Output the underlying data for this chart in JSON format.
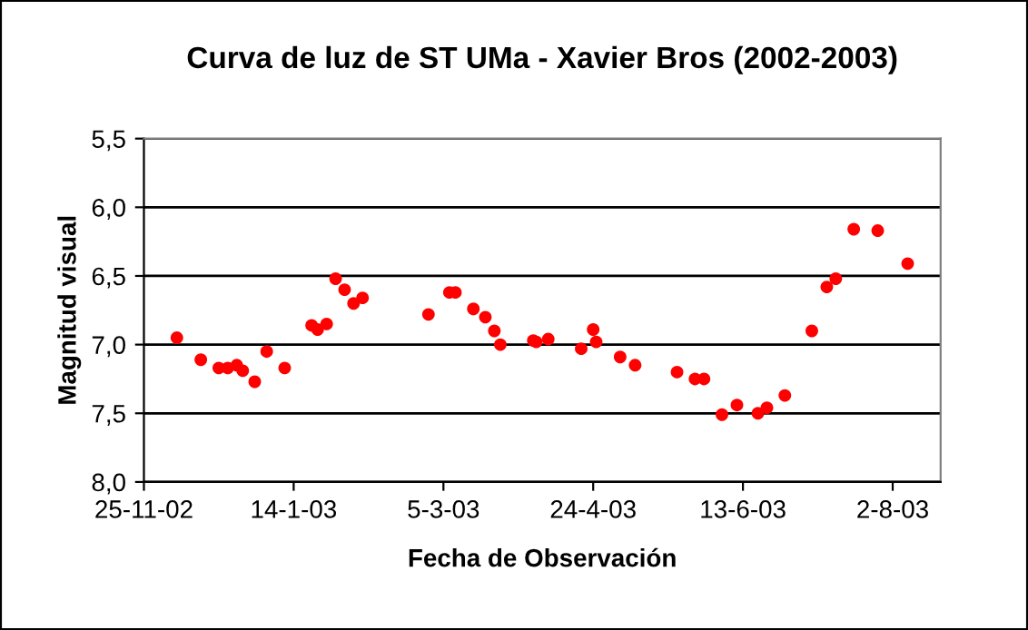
{
  "chart_data": {
    "type": "scatter",
    "title": "Curva de luz de ST UMa - Xavier Bros (2002-2003)",
    "xlabel": "Fecha de Observación",
    "ylabel": "Magnitud visual",
    "x": [
      "2002-12-06",
      "2002-12-14",
      "2002-12-20",
      "2002-12-23",
      "2002-12-26",
      "2002-12-28",
      "2003-01-01",
      "2003-01-05",
      "2003-01-11",
      "2003-01-20",
      "2003-01-22",
      "2003-01-25",
      "2003-01-28",
      "2003-01-31",
      "2003-02-03",
      "2003-02-06",
      "2003-02-28",
      "2003-03-07",
      "2003-03-09",
      "2003-03-15",
      "2003-03-19",
      "2003-03-22",
      "2003-03-24",
      "2003-04-04",
      "2003-04-05",
      "2003-04-09",
      "2003-04-20",
      "2003-04-24",
      "2003-04-25",
      "2003-05-03",
      "2003-05-08",
      "2003-05-22",
      "2003-05-28",
      "2003-05-31",
      "2003-06-06",
      "2003-06-11",
      "2003-06-18",
      "2003-06-21",
      "2003-06-27",
      "2003-07-06",
      "2003-07-11",
      "2003-07-14",
      "2003-07-20",
      "2003-07-28",
      "2003-08-07"
    ],
    "series": [
      {
        "color": "#ff0000",
        "values": [
          6.95,
          7.11,
          7.17,
          7.17,
          7.15,
          7.19,
          7.27,
          7.05,
          7.17,
          6.86,
          6.89,
          6.85,
          6.52,
          6.6,
          6.7,
          6.66,
          6.78,
          6.62,
          6.62,
          6.74,
          6.8,
          6.9,
          7.0,
          6.97,
          6.98,
          6.96,
          7.03,
          6.89,
          6.98,
          7.09,
          7.15,
          7.2,
          7.25,
          7.25,
          7.51,
          7.44,
          7.5,
          7.46,
          7.37,
          6.9,
          6.58,
          6.52,
          6.16,
          6.17,
          6.41
        ]
      }
    ],
    "marker": "circle",
    "grid": "y",
    "legend": false,
    "xlim": [
      "2002-11-25",
      "2003-08-18"
    ],
    "xticks": [
      {
        "value": "2002-11-25",
        "label": "25-11-02"
      },
      {
        "value": "2003-01-14",
        "label": "14-1-03"
      },
      {
        "value": "2003-03-05",
        "label": "5-3-03"
      },
      {
        "value": "2003-04-24",
        "label": "24-4-03"
      },
      {
        "value": "2003-06-13",
        "label": "13-6-03"
      },
      {
        "value": "2003-08-02",
        "label": "2-8-03"
      }
    ],
    "ylim": [
      8.0,
      5.5
    ],
    "yticks": [
      {
        "value": 5.5,
        "label": "5,5"
      },
      {
        "value": 6.0,
        "label": "6,0"
      },
      {
        "value": 6.5,
        "label": "6,5"
      },
      {
        "value": 7.0,
        "label": "7,0"
      },
      {
        "value": 7.5,
        "label": "7,5"
      },
      {
        "value": 8.0,
        "label": "8,0"
      }
    ]
  }
}
